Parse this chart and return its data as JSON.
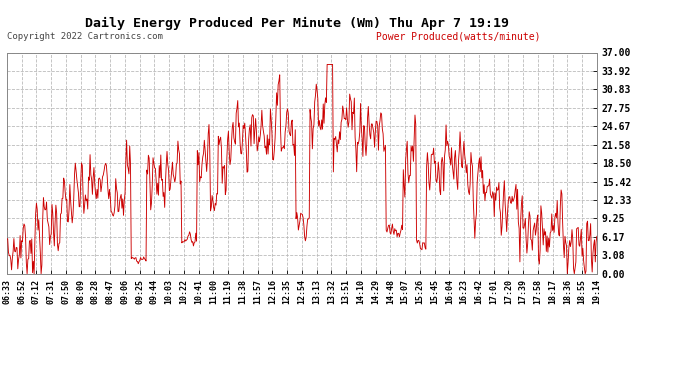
{
  "title": "Daily Energy Produced Per Minute (Wm) Thu Apr 7 19:19",
  "copyright": "Copyright 2022 Cartronics.com",
  "legend_label": "Power Produced(watts/minute)",
  "yticks": [
    0.0,
    3.08,
    6.17,
    9.25,
    12.33,
    15.42,
    18.5,
    21.58,
    24.67,
    27.75,
    30.83,
    33.92,
    37.0
  ],
  "ymax": 37.0,
  "ymin": 0.0,
  "line_color": "#cc0000",
  "bg_color": "#ffffff",
  "grid_color": "#bbbbbb",
  "title_color": "#000000",
  "xtick_labels": [
    "06:33",
    "06:52",
    "07:12",
    "07:31",
    "07:50",
    "08:09",
    "08:28",
    "08:47",
    "09:06",
    "09:25",
    "09:44",
    "10:03",
    "10:22",
    "10:41",
    "11:00",
    "11:19",
    "11:38",
    "11:57",
    "12:16",
    "12:35",
    "12:54",
    "13:13",
    "13:32",
    "13:51",
    "14:10",
    "14:29",
    "14:48",
    "15:07",
    "15:26",
    "15:45",
    "16:04",
    "16:23",
    "16:42",
    "17:01",
    "17:20",
    "17:39",
    "17:58",
    "18:17",
    "18:36",
    "18:55",
    "19:14"
  ]
}
